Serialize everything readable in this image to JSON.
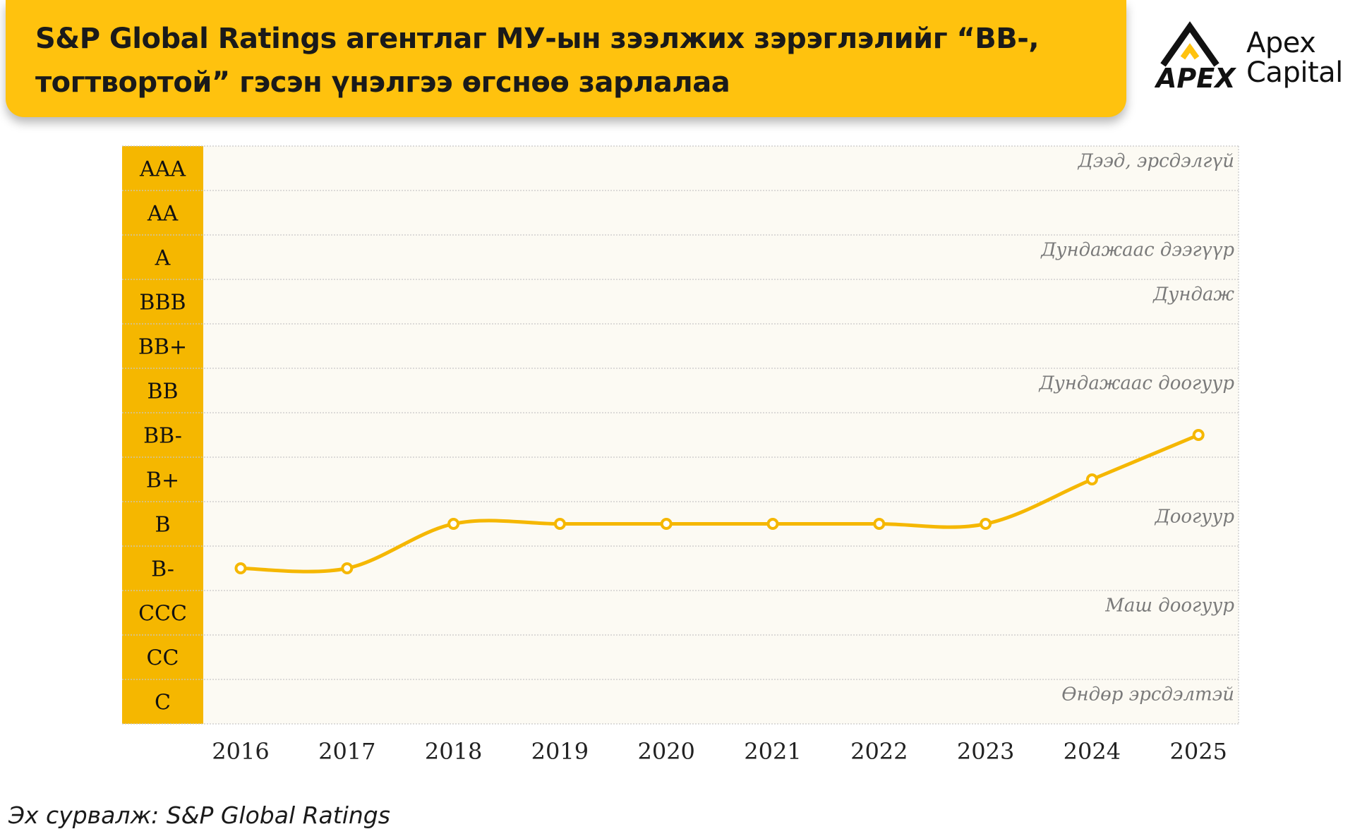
{
  "header": {
    "title": "S&P Global Ratings агентлаг МУ-ын зээлжих зэрэглэлийг “BB-, тогтвортой” гэсэн үнэлгээ өгснөө зарлалаа",
    "logo_mark": "APEX",
    "logo_name": "Apex\nCapital"
  },
  "colors": {
    "accent": "#FFC20E",
    "rating_column": "#F5B700",
    "line": "#F5B700",
    "plot_background": "#FCFAF3",
    "gridline": "#C8C8C8",
    "band_label": "#7A7A7A"
  },
  "chart_data": {
    "type": "line",
    "title": "",
    "xlabel": "",
    "ylabel": "",
    "categories": [
      "2016",
      "2017",
      "2018",
      "2019",
      "2020",
      "2021",
      "2022",
      "2023",
      "2024",
      "2025"
    ],
    "y_categories": [
      "AAA",
      "AA",
      "A",
      "BBB",
      "BB+",
      "BB",
      "BB-",
      "B+",
      "B",
      "B-",
      "CCC",
      "CC",
      "C"
    ],
    "series": [
      {
        "values": [
          "B-",
          "B-",
          "B",
          "B",
          "B",
          "B",
          "B",
          "B",
          "B+",
          "BB-"
        ]
      }
    ],
    "band_labels": [
      {
        "text": "Дээд, эрсдэлгүй",
        "row": "AAA"
      },
      {
        "text": "Дундажаас дээгүүр",
        "row": "A"
      },
      {
        "text": "Дундаж",
        "row": "BBB"
      },
      {
        "text": "Дундажаас доогуур",
        "row": "BB"
      },
      {
        "text": "Доогуур",
        "row": "B"
      },
      {
        "text": "Маш доогуур",
        "row": "CCC"
      },
      {
        "text": "Өндөр эрсдэлтэй",
        "row": "C"
      }
    ],
    "grid": true,
    "marker": "hollow-circle"
  },
  "source": "Эх сурвалж: S&P Global Ratings"
}
